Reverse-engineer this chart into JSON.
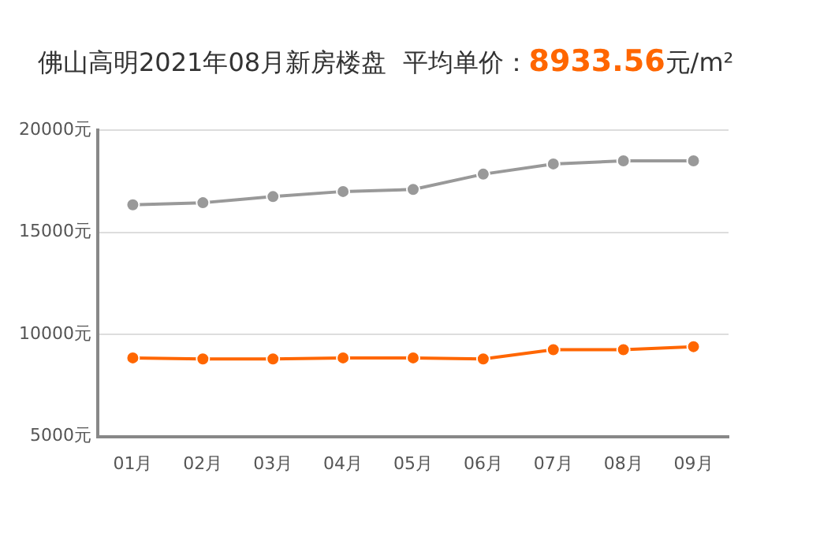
{
  "chart_data": {
    "type": "line",
    "title": "佛山高明2021年08月新房楼盘  平均单价：8933.56元/m²",
    "categories": [
      "01月",
      "02月",
      "03月",
      "04月",
      "05月",
      "06月",
      "07月",
      "08月",
      "09月"
    ],
    "series": [
      {
        "color": "#999999",
        "values": [
          16350,
          16450,
          16750,
          17000,
          17100,
          17850,
          18350,
          18500,
          18500
        ]
      },
      {
        "color": "#ff6600",
        "values": [
          8850,
          8800,
          8800,
          8850,
          8850,
          8800,
          9250,
          9250,
          9400
        ]
      }
    ],
    "ylim": [
      5000,
      20000
    ],
    "yticks": [
      {
        "value": 5000,
        "label": "5000元"
      },
      {
        "value": 10000,
        "label": "10000元"
      },
      {
        "value": 15000,
        "label": "15000元"
      },
      {
        "value": 20000,
        "label": "20000元"
      }
    ],
    "grid": "y",
    "legend": false,
    "marker": "circle",
    "line_style": "solid"
  }
}
